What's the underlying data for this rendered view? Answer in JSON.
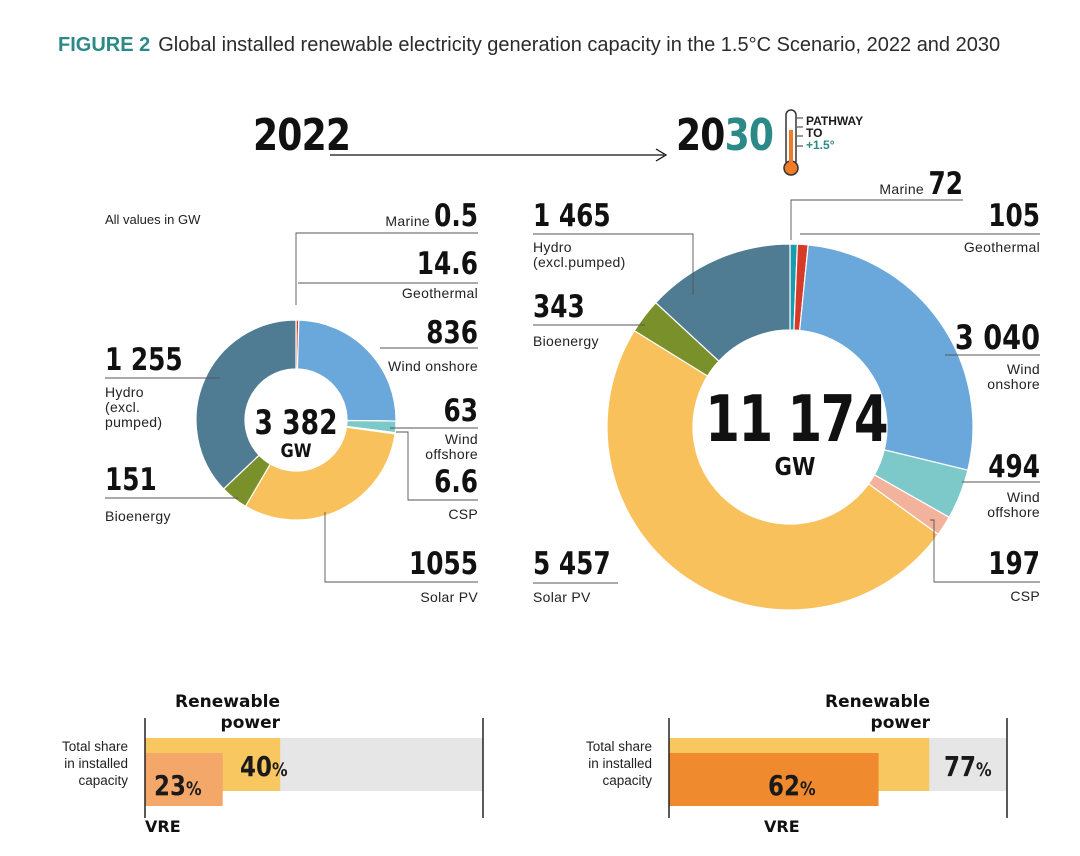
{
  "figure": {
    "label": "FIGURE 2",
    "title": "Global installed renewable electricity generation capacity in the 1.5°C Scenario, 2022 and 2030"
  },
  "header": {
    "year_2022": "2022",
    "year_2030_prefix": "20",
    "year_2030_suffix": "30",
    "pathway_line1": "PATHWAY",
    "pathway_line2": "TO",
    "pathway_line3": "+1.5°"
  },
  "note": "All values in GW",
  "colors": {
    "marine": "#1a9bb0",
    "geothermal": "#d63b2a",
    "wind_onshore": "#6aa7da",
    "wind_offshore": "#7dc8c9",
    "csp": "#f3b29b",
    "solar_pv": "#f9c15c",
    "bioenergy": "#7a902a",
    "hydro": "#4f7b93",
    "renewable_bar": "#f9c760",
    "vre_bar_2022": "#f3a86a",
    "vre_bar_2030": "#ef8a2f",
    "bar_bg": "#e6e6e6",
    "accent": "#2b8a87"
  },
  "chart_data": [
    {
      "type": "pie",
      "title": "2022",
      "unit": "GW",
      "total": "3 382",
      "categories": [
        "Marine",
        "Geothermal",
        "Wind onshore",
        "Wind offshore",
        "CSP",
        "Solar PV",
        "Bioenergy",
        "Hydro (excl. pumped)"
      ],
      "values": [
        0.5,
        14.6,
        836,
        63,
        6.6,
        1055,
        151,
        1255
      ],
      "value_labels": [
        "0.5",
        "14.6",
        "836",
        "63",
        "6.6",
        "1055",
        "151",
        "1 255"
      ]
    },
    {
      "type": "pie",
      "title": "2030",
      "unit": "GW",
      "total": "11 174",
      "categories": [
        "Marine",
        "Geothermal",
        "Wind onshore",
        "Wind offshore",
        "CSP",
        "Solar PV",
        "Bioenergy",
        "Hydro (excl.pumped)"
      ],
      "values": [
        72,
        105,
        3040,
        494,
        197,
        5457,
        343,
        1465
      ],
      "value_labels": [
        "72",
        "105",
        "3 040",
        "494",
        "197",
        "5 457",
        "343",
        "1 465"
      ]
    },
    {
      "type": "bar",
      "title": "Total share in installed capacity, 2022",
      "categories": [
        "Renewable power",
        "VRE"
      ],
      "values": [
        40,
        23
      ],
      "unit": "%"
    },
    {
      "type": "bar",
      "title": "Total share in installed capacity, 2030",
      "categories": [
        "Renewable power",
        "VRE"
      ],
      "values": [
        77,
        62
      ],
      "unit": "%"
    }
  ],
  "labels_2022": {
    "marine": "Marine",
    "geothermal": "Geothermal",
    "wind_onshore": "Wind onshore",
    "wind_offshore_1": "Wind",
    "wind_offshore_2": "offshore",
    "csp": "CSP",
    "solar_pv": "Solar PV",
    "bioenergy": "Bioenergy",
    "hydro_1": "Hydro",
    "hydro_2": "(excl.",
    "hydro_3": "pumped)"
  },
  "labels_2030": {
    "marine": "Marine",
    "geothermal": "Geothermal",
    "wind_onshore_1": "Wind",
    "wind_onshore_2": "onshore",
    "wind_offshore_1": "Wind",
    "wind_offshore_2": "offshore",
    "csp": "CSP",
    "solar_pv": "Solar PV",
    "bioenergy": "Bioenergy",
    "hydro_1": "Hydro",
    "hydro_2": "(excl.pumped)"
  },
  "shares": {
    "title_line1": "Renewable",
    "title_line2": "power",
    "label_line1": "Total share",
    "label_line2": "in installed",
    "label_line3": "capacity",
    "renewable_2022": "40",
    "vre_2022": "23",
    "renewable_2030": "77",
    "vre_2030": "62",
    "percent_sign": "%",
    "vre_label": "VRE"
  }
}
